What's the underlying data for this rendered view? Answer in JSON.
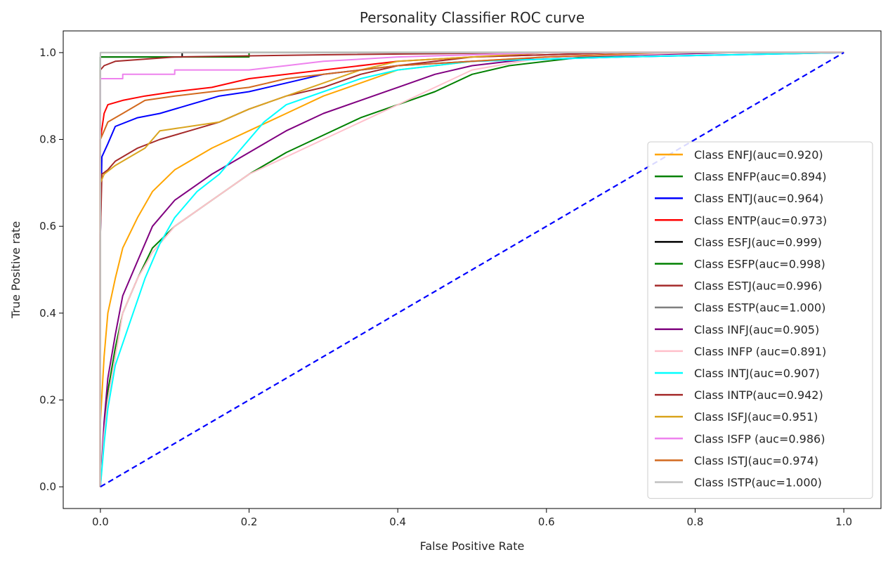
{
  "chart_data": {
    "type": "line",
    "title": "Personality Classifier ROC curve",
    "xlabel": "False Positive Rate",
    "ylabel": "True Positive rate",
    "xlim": [
      -0.05,
      1.05
    ],
    "ylim": [
      -0.05,
      1.05
    ],
    "xticks": [
      "0.0",
      "0.2",
      "0.4",
      "0.6",
      "0.8",
      "1.0"
    ],
    "yticks": [
      "0.0",
      "0.2",
      "0.4",
      "0.6",
      "0.8",
      "1.0"
    ],
    "grid": false,
    "legend_position": "center-right",
    "series": [
      {
        "name": "Class ENFJ(auc=0.920)",
        "color": "#ffa500",
        "points": [
          [
            0,
            0
          ],
          [
            0,
            0.15
          ],
          [
            0.005,
            0.3
          ],
          [
            0.01,
            0.4
          ],
          [
            0.02,
            0.48
          ],
          [
            0.03,
            0.55
          ],
          [
            0.05,
            0.62
          ],
          [
            0.07,
            0.68
          ],
          [
            0.1,
            0.73
          ],
          [
            0.15,
            0.78
          ],
          [
            0.2,
            0.82
          ],
          [
            0.25,
            0.86
          ],
          [
            0.3,
            0.9
          ],
          [
            0.35,
            0.93
          ],
          [
            0.4,
            0.96
          ],
          [
            0.5,
            0.98
          ],
          [
            0.6,
            0.99
          ],
          [
            0.8,
            1.0
          ],
          [
            1.0,
            1.0
          ]
        ]
      },
      {
        "name": "Class ENFP(auc=0.894)",
        "color": "#008000",
        "points": [
          [
            0,
            0
          ],
          [
            0.005,
            0.12
          ],
          [
            0.01,
            0.22
          ],
          [
            0.02,
            0.32
          ],
          [
            0.03,
            0.4
          ],
          [
            0.05,
            0.48
          ],
          [
            0.07,
            0.55
          ],
          [
            0.1,
            0.6
          ],
          [
            0.15,
            0.66
          ],
          [
            0.2,
            0.72
          ],
          [
            0.25,
            0.77
          ],
          [
            0.3,
            0.81
          ],
          [
            0.35,
            0.85
          ],
          [
            0.4,
            0.88
          ],
          [
            0.45,
            0.91
          ],
          [
            0.5,
            0.95
          ],
          [
            0.55,
            0.97
          ],
          [
            0.65,
            0.99
          ],
          [
            0.8,
            1.0
          ],
          [
            1.0,
            1.0
          ]
        ]
      },
      {
        "name": "Class ENTJ(auc=0.964)",
        "color": "#0000ff",
        "points": [
          [
            0,
            0
          ],
          [
            0,
            0.58
          ],
          [
            0.002,
            0.76
          ],
          [
            0.01,
            0.79
          ],
          [
            0.02,
            0.83
          ],
          [
            0.05,
            0.85
          ],
          [
            0.08,
            0.86
          ],
          [
            0.12,
            0.88
          ],
          [
            0.16,
            0.9
          ],
          [
            0.2,
            0.91
          ],
          [
            0.25,
            0.93
          ],
          [
            0.3,
            0.95
          ],
          [
            0.35,
            0.96
          ],
          [
            0.4,
            0.97
          ],
          [
            0.5,
            0.98
          ],
          [
            0.7,
            0.99
          ],
          [
            1.0,
            1.0
          ]
        ]
      },
      {
        "name": "Class ENTP(auc=0.973)",
        "color": "#ff0000",
        "points": [
          [
            0,
            0
          ],
          [
            0,
            0.8
          ],
          [
            0.005,
            0.86
          ],
          [
            0.01,
            0.88
          ],
          [
            0.03,
            0.89
          ],
          [
            0.06,
            0.9
          ],
          [
            0.1,
            0.91
          ],
          [
            0.15,
            0.92
          ],
          [
            0.2,
            0.94
          ],
          [
            0.3,
            0.96
          ],
          [
            0.4,
            0.98
          ],
          [
            0.5,
            0.99
          ],
          [
            0.7,
            1.0
          ],
          [
            1.0,
            1.0
          ]
        ]
      },
      {
        "name": "Class ESFJ(auc=0.999)",
        "color": "#000000",
        "points": [
          [
            0,
            0
          ],
          [
            0,
            0.99
          ],
          [
            0.11,
            0.99
          ],
          [
            0.11,
            1.0
          ],
          [
            1.0,
            1.0
          ]
        ]
      },
      {
        "name": "Class ESFP(auc=0.998)",
        "color": "#008000",
        "points": [
          [
            0,
            0
          ],
          [
            0,
            0.99
          ],
          [
            0.2,
            0.99
          ],
          [
            0.2,
            1.0
          ],
          [
            1.0,
            1.0
          ]
        ]
      },
      {
        "name": "Class ESTJ(auc=0.996)",
        "color": "#a52a2a",
        "points": [
          [
            0,
            0
          ],
          [
            0,
            0.96
          ],
          [
            0.005,
            0.97
          ],
          [
            0.02,
            0.98
          ],
          [
            0.1,
            0.99
          ],
          [
            0.3,
            0.995
          ],
          [
            0.6,
            1.0
          ],
          [
            1.0,
            1.0
          ]
        ]
      },
      {
        "name": "Class ESTP(auc=1.000)",
        "color": "#808080",
        "points": [
          [
            0,
            0
          ],
          [
            0,
            1.0
          ],
          [
            1.0,
            1.0
          ]
        ]
      },
      {
        "name": "Class INFJ(auc=0.905)",
        "color": "#800080",
        "points": [
          [
            0,
            0
          ],
          [
            0.005,
            0.15
          ],
          [
            0.01,
            0.25
          ],
          [
            0.02,
            0.35
          ],
          [
            0.03,
            0.44
          ],
          [
            0.05,
            0.52
          ],
          [
            0.07,
            0.6
          ],
          [
            0.1,
            0.66
          ],
          [
            0.15,
            0.72
          ],
          [
            0.2,
            0.77
          ],
          [
            0.25,
            0.82
          ],
          [
            0.3,
            0.86
          ],
          [
            0.35,
            0.89
          ],
          [
            0.4,
            0.92
          ],
          [
            0.45,
            0.95
          ],
          [
            0.5,
            0.97
          ],
          [
            0.6,
            0.99
          ],
          [
            0.85,
            1.0
          ],
          [
            1.0,
            1.0
          ]
        ]
      },
      {
        "name": "Class INFP (auc=0.891)",
        "color": "#ffc0cb",
        "points": [
          [
            0,
            0
          ],
          [
            0.005,
            0.12
          ],
          [
            0.01,
            0.2
          ],
          [
            0.02,
            0.3
          ],
          [
            0.03,
            0.4
          ],
          [
            0.05,
            0.48
          ],
          [
            0.07,
            0.54
          ],
          [
            0.1,
            0.6
          ],
          [
            0.15,
            0.66
          ],
          [
            0.2,
            0.72
          ],
          [
            0.25,
            0.76
          ],
          [
            0.3,
            0.8
          ],
          [
            0.35,
            0.84
          ],
          [
            0.4,
            0.88
          ],
          [
            0.45,
            0.92
          ],
          [
            0.5,
            0.96
          ],
          [
            0.6,
            0.99
          ],
          [
            0.8,
            1.0
          ],
          [
            1.0,
            1.0
          ]
        ]
      },
      {
        "name": "Class INTJ(auc=0.907)",
        "color": "#00ffff",
        "points": [
          [
            0,
            0
          ],
          [
            0.005,
            0.1
          ],
          [
            0.01,
            0.18
          ],
          [
            0.02,
            0.28
          ],
          [
            0.04,
            0.38
          ],
          [
            0.06,
            0.48
          ],
          [
            0.08,
            0.56
          ],
          [
            0.1,
            0.62
          ],
          [
            0.13,
            0.68
          ],
          [
            0.16,
            0.72
          ],
          [
            0.19,
            0.78
          ],
          [
            0.22,
            0.84
          ],
          [
            0.25,
            0.88
          ],
          [
            0.3,
            0.91
          ],
          [
            0.35,
            0.94
          ],
          [
            0.4,
            0.96
          ],
          [
            0.5,
            0.98
          ],
          [
            0.7,
            0.99
          ],
          [
            1.0,
            1.0
          ]
        ]
      },
      {
        "name": "Class INTP(auc=0.942)",
        "color": "#a52a2a",
        "points": [
          [
            0,
            0
          ],
          [
            0,
            0.58
          ],
          [
            0.002,
            0.72
          ],
          [
            0.01,
            0.73
          ],
          [
            0.02,
            0.75
          ],
          [
            0.05,
            0.78
          ],
          [
            0.08,
            0.8
          ],
          [
            0.12,
            0.82
          ],
          [
            0.16,
            0.84
          ],
          [
            0.2,
            0.87
          ],
          [
            0.25,
            0.9
          ],
          [
            0.3,
            0.92
          ],
          [
            0.35,
            0.95
          ],
          [
            0.4,
            0.97
          ],
          [
            0.5,
            0.99
          ],
          [
            0.7,
            1.0
          ],
          [
            1.0,
            1.0
          ]
        ]
      },
      {
        "name": "Class ISFJ(auc=0.951)",
        "color": "#daa520",
        "points": [
          [
            0,
            0
          ],
          [
            0,
            0.7
          ],
          [
            0.005,
            0.72
          ],
          [
            0.02,
            0.74
          ],
          [
            0.04,
            0.76
          ],
          [
            0.06,
            0.78
          ],
          [
            0.08,
            0.82
          ],
          [
            0.12,
            0.83
          ],
          [
            0.16,
            0.84
          ],
          [
            0.2,
            0.87
          ],
          [
            0.25,
            0.9
          ],
          [
            0.3,
            0.93
          ],
          [
            0.35,
            0.96
          ],
          [
            0.4,
            0.98
          ],
          [
            0.5,
            0.99
          ],
          [
            0.6,
            1.0
          ],
          [
            1.0,
            1.0
          ]
        ]
      },
      {
        "name": "Class ISFP (auc=0.986)",
        "color": "#ee82ee",
        "points": [
          [
            0,
            0
          ],
          [
            0,
            0.94
          ],
          [
            0.03,
            0.94
          ],
          [
            0.03,
            0.95
          ],
          [
            0.1,
            0.95
          ],
          [
            0.1,
            0.96
          ],
          [
            0.2,
            0.96
          ],
          [
            0.25,
            0.97
          ],
          [
            0.3,
            0.98
          ],
          [
            0.4,
            0.99
          ],
          [
            0.6,
            1.0
          ],
          [
            1.0,
            1.0
          ]
        ]
      },
      {
        "name": "Class ISTJ(auc=0.974)",
        "color": "#d2691e",
        "points": [
          [
            0,
            0
          ],
          [
            0,
            0.8
          ],
          [
            0.01,
            0.84
          ],
          [
            0.03,
            0.86
          ],
          [
            0.06,
            0.89
          ],
          [
            0.1,
            0.9
          ],
          [
            0.15,
            0.91
          ],
          [
            0.2,
            0.92
          ],
          [
            0.25,
            0.94
          ],
          [
            0.3,
            0.95
          ],
          [
            0.35,
            0.96
          ],
          [
            0.4,
            0.97
          ],
          [
            0.5,
            0.98
          ],
          [
            0.6,
            0.99
          ],
          [
            0.75,
            1.0
          ],
          [
            1.0,
            1.0
          ]
        ]
      },
      {
        "name": "Class ISTP(auc=1.000)",
        "color": "#c0c0c0",
        "points": [
          [
            0,
            0
          ],
          [
            0,
            1.0
          ],
          [
            1.0,
            1.0
          ]
        ]
      }
    ],
    "reference_line": {
      "color": "#0000ff",
      "style": "dashed",
      "points": [
        [
          0,
          0
        ],
        [
          1,
          1
        ]
      ]
    }
  }
}
